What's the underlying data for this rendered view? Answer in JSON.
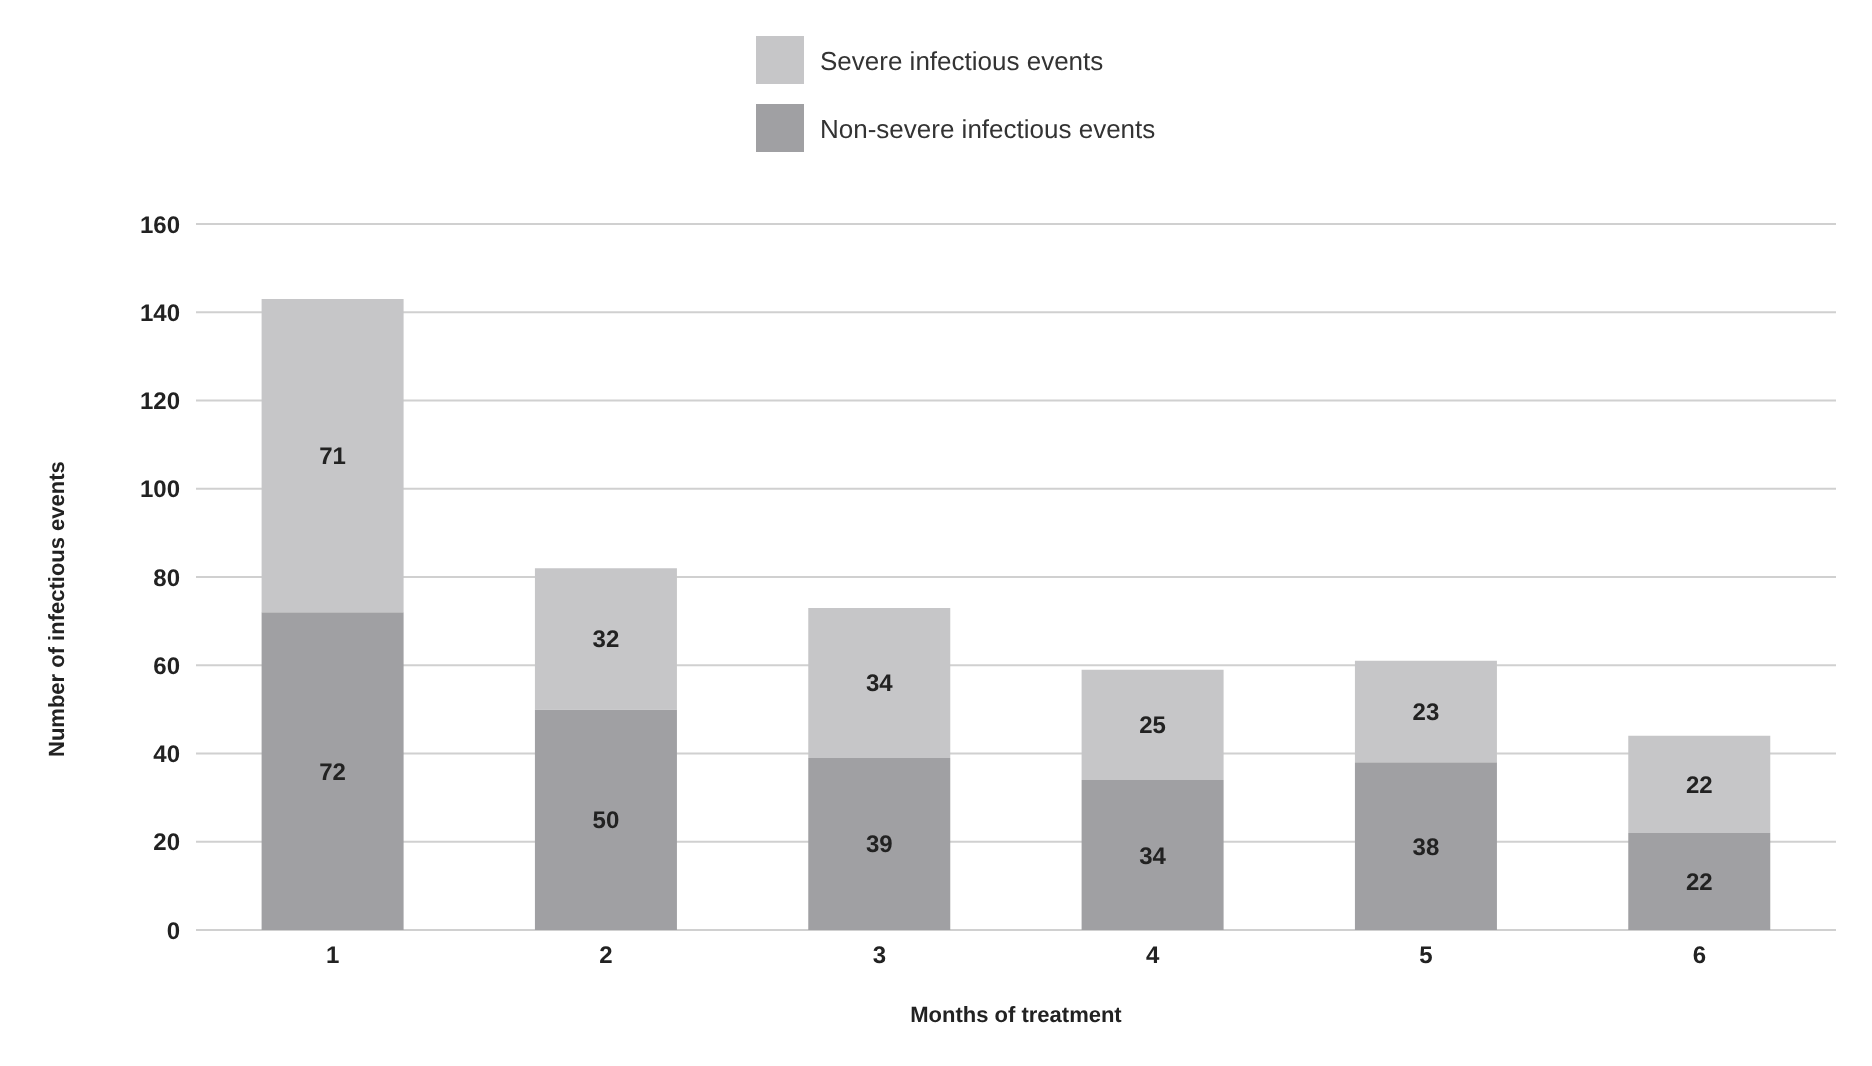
{
  "chart_data": {
    "type": "bar",
    "stacked": true,
    "xlabel": "Months of treatment",
    "ylabel": "Number of infectious events",
    "categories": [
      "1",
      "2",
      "3",
      "4",
      "5",
      "6"
    ],
    "series": [
      {
        "name": "Non-severe infectious events",
        "color": "#a0a0a3",
        "values": [
          72,
          50,
          39,
          34,
          38,
          22
        ]
      },
      {
        "name": "Severe infectious events",
        "color": "#c6c6c8",
        "values": [
          71,
          32,
          34,
          25,
          23,
          22
        ]
      }
    ],
    "ylim": [
      0,
      160
    ],
    "yticks": [
      0,
      20,
      40,
      60,
      80,
      100,
      120,
      140,
      160
    ],
    "grid": "y",
    "legend": "top",
    "data_labels": true
  }
}
